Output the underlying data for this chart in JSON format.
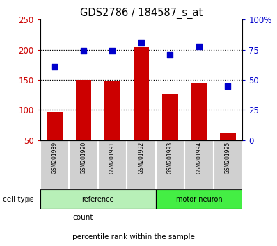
{
  "title": "GDS2786 / 184587_s_at",
  "samples": [
    "GSM201989",
    "GSM201990",
    "GSM201991",
    "GSM201992",
    "GSM201993",
    "GSM201994",
    "GSM201995"
  ],
  "counts": [
    97,
    150,
    148,
    205,
    127,
    145,
    62
  ],
  "percentile_left": [
    172,
    198,
    199,
    212,
    191,
    205,
    140
  ],
  "bar_color": "#cc0000",
  "dot_color": "#0000cc",
  "left_ylim": [
    50,
    250
  ],
  "left_yticks": [
    50,
    100,
    150,
    200,
    250
  ],
  "right_ylim": [
    0,
    100
  ],
  "right_yticks": [
    0,
    25,
    50,
    75,
    100
  ],
  "right_yticklabels": [
    "0",
    "25",
    "50",
    "75",
    "100%"
  ],
  "hgrid_lines": [
    100,
    150,
    200
  ],
  "groups": [
    {
      "label": "reference",
      "indices": [
        0,
        1,
        2,
        3
      ],
      "color": "#b8f0b8"
    },
    {
      "label": "motor neuron",
      "indices": [
        4,
        5,
        6
      ],
      "color": "#44ee44"
    }
  ],
  "cell_type_label": "cell type",
  "legend_count_label": "count",
  "legend_percentile_label": "percentile rank within the sample",
  "sample_bg_color": "#d0d0d0",
  "bg_color": "#ffffff",
  "title_fontsize": 10.5,
  "tick_fontsize": 8.5,
  "sample_fontsize": 5.5,
  "group_fontsize": 7,
  "legend_fontsize": 7.5
}
